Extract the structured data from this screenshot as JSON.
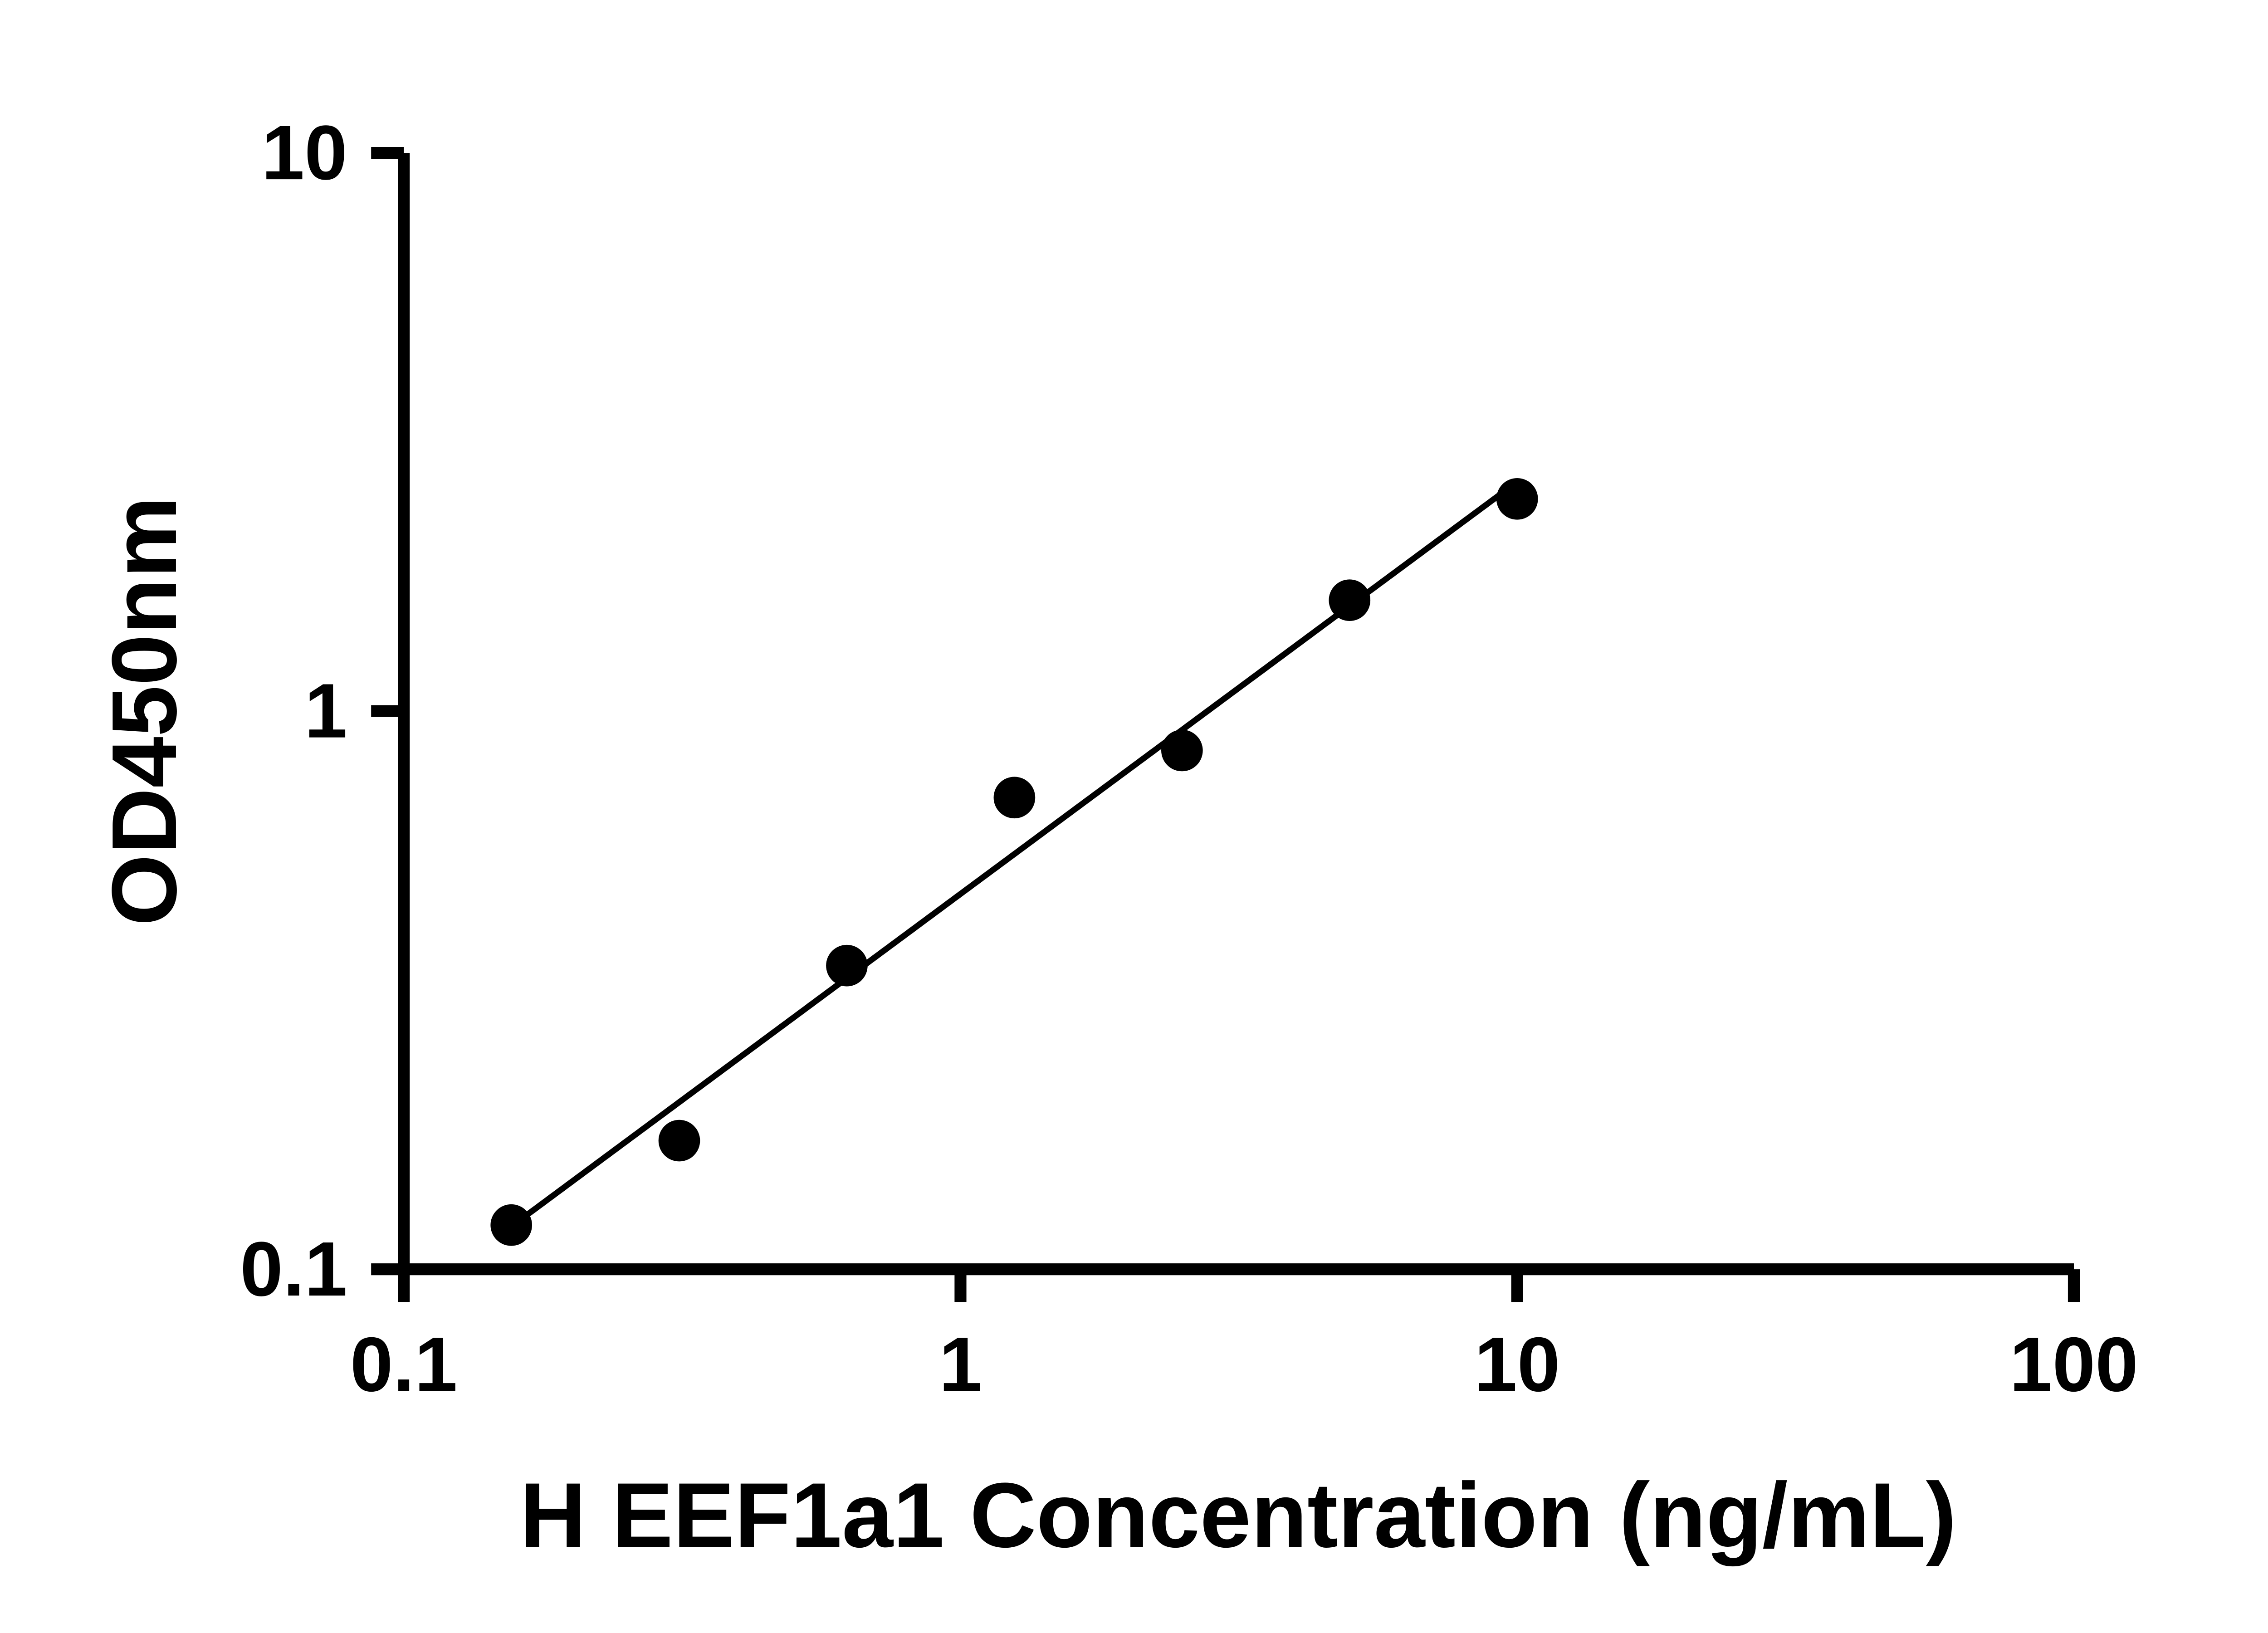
{
  "figure": {
    "background_color": "#ffffff",
    "foreground_color": "#000000",
    "description": "ELISA standard curve scatter plot with log-log axes and straight fit line"
  },
  "chart_data": {
    "type": "scatter",
    "title": "",
    "xlabel": "H EEF1a1 Concentration (ng/mL)",
    "ylabel": "OD450nm",
    "xscale": "log",
    "yscale": "log",
    "xlim": [
      0.1,
      100
    ],
    "ylim": [
      0.1,
      10
    ],
    "x_ticks": [
      0.1,
      1,
      10,
      100
    ],
    "x_tick_labels": [
      "0.1",
      "1",
      "10",
      "100"
    ],
    "y_ticks": [
      0.1,
      1,
      10
    ],
    "y_tick_labels": [
      "0.1",
      "1",
      "10"
    ],
    "grid": false,
    "legend": false,
    "axis_color": "#000000",
    "marker_color": "#000000",
    "line_color": "#000000",
    "points": {
      "x": [
        0.156,
        0.3125,
        0.625,
        1.25,
        2.5,
        5,
        10
      ],
      "y": [
        0.12,
        0.17,
        0.35,
        0.7,
        0.85,
        1.58,
        2.4
      ]
    },
    "fit": "linear regression in log-log space drawn from first to last data point"
  }
}
